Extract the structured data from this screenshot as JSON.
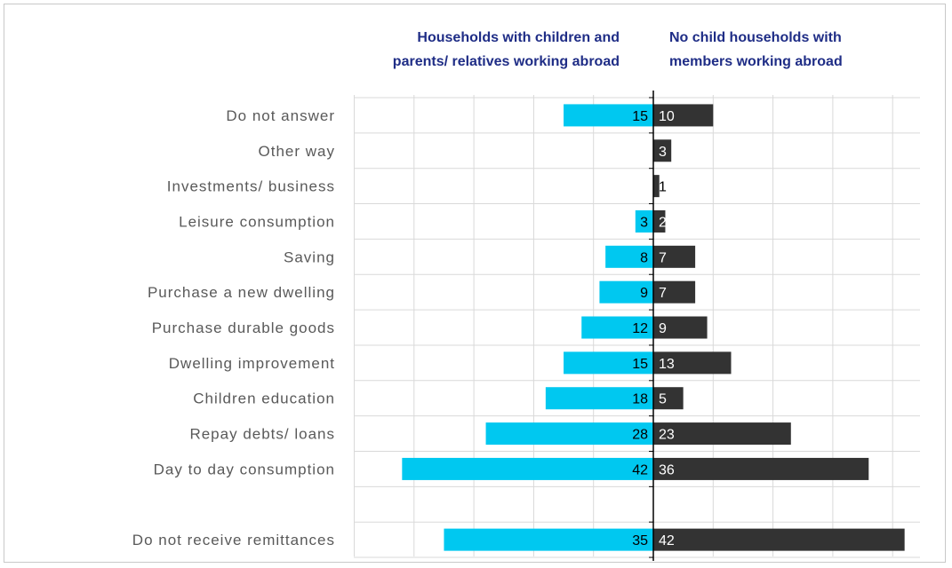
{
  "chart_data": {
    "type": "bar",
    "orientation": "horizontal-diverging",
    "categories": [
      "Do not answer",
      "Other way",
      "Investments/ business",
      "Leisure consumption",
      "Saving",
      "Purchase a new dwelling",
      "Purchase durable goods",
      "Dwelling improvement",
      "Children education",
      "Repay debts/ loans",
      "Day to day consumption",
      "",
      "Do not receive remittances"
    ],
    "series": [
      {
        "name": "Households with children and parents/ relatives working abroad",
        "values": [
          15,
          null,
          null,
          3,
          8,
          9,
          12,
          15,
          18,
          28,
          42,
          null,
          35
        ],
        "color": "#00c8f0",
        "side": "left"
      },
      {
        "name": "No child households with members working abroad",
        "values": [
          10,
          3,
          1,
          2,
          7,
          7,
          9,
          13,
          5,
          23,
          36,
          null,
          42
        ],
        "color": "#333333",
        "side": "right"
      }
    ],
    "xlim": [
      -50,
      50
    ],
    "grid": true,
    "legend": "top headers"
  },
  "headers": {
    "left_line1": "Households with children and",
    "left_line2": "parents/ relatives working abroad",
    "right_line1": "No child households with",
    "right_line2": "members working abroad"
  },
  "colors": {
    "left_bar": "#00c8f0",
    "right_bar": "#333333",
    "header_text": "#1f2d86",
    "category_text": "#595959",
    "grid": "#d9d9d9"
  }
}
